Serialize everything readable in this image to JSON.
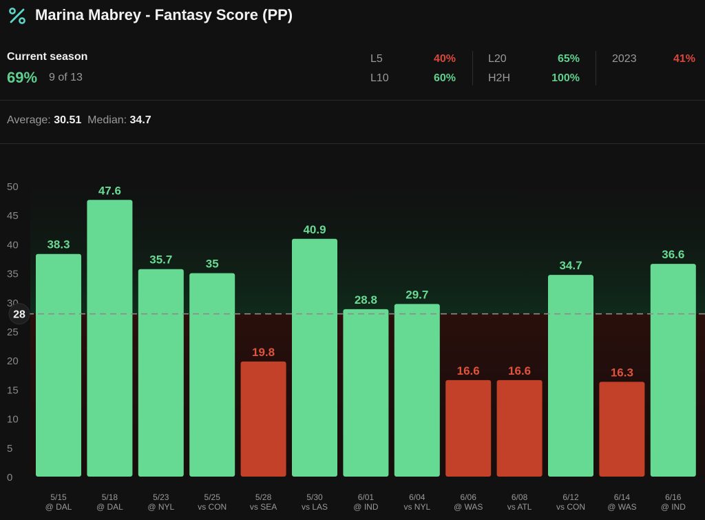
{
  "header": {
    "title": "Marina Mabrey - Fantasy Score (PP)",
    "icon": "percent-icon"
  },
  "season": {
    "label": "Current season",
    "pct": "69%",
    "count": "9 of 13"
  },
  "stats": [
    {
      "label": "L5",
      "value": "40%",
      "tone": "red"
    },
    {
      "label": "L10",
      "value": "60%",
      "tone": "green"
    },
    {
      "label": "L20",
      "value": "65%",
      "tone": "green"
    },
    {
      "label": "H2H",
      "value": "100%",
      "tone": "green"
    },
    {
      "label": "2023",
      "value": "41%",
      "tone": "red"
    }
  ],
  "summary": {
    "avg_label": "Average:",
    "avg_value": "30.51",
    "median_label": "Median:",
    "median_value": "34.7"
  },
  "colors": {
    "over": "#66d993",
    "under": "#c24128",
    "over_label": "#69d993",
    "under_label": "#e0533c"
  },
  "chart_data": {
    "type": "bar",
    "line": 28,
    "line_label": "28",
    "ylim": [
      0,
      50
    ],
    "yticks": [
      0,
      5,
      10,
      15,
      20,
      25,
      30,
      35,
      40,
      45,
      50
    ],
    "categories": [
      [
        "5/15",
        "@ DAL"
      ],
      [
        "5/18",
        "@ DAL"
      ],
      [
        "5/23",
        "@ NYL"
      ],
      [
        "5/25",
        "vs CON"
      ],
      [
        "5/28",
        "vs SEA"
      ],
      [
        "5/30",
        "vs LAS"
      ],
      [
        "6/01",
        "@ IND"
      ],
      [
        "6/04",
        "vs NYL"
      ],
      [
        "6/06",
        "@ WAS"
      ],
      [
        "6/08",
        "vs ATL"
      ],
      [
        "6/12",
        "vs CON"
      ],
      [
        "6/14",
        "@ WAS"
      ],
      [
        "6/16",
        "@ IND"
      ]
    ],
    "values": [
      38.3,
      47.6,
      35.7,
      35,
      19.8,
      40.9,
      28.8,
      29.7,
      16.6,
      16.6,
      34.7,
      16.3,
      36.6
    ]
  }
}
